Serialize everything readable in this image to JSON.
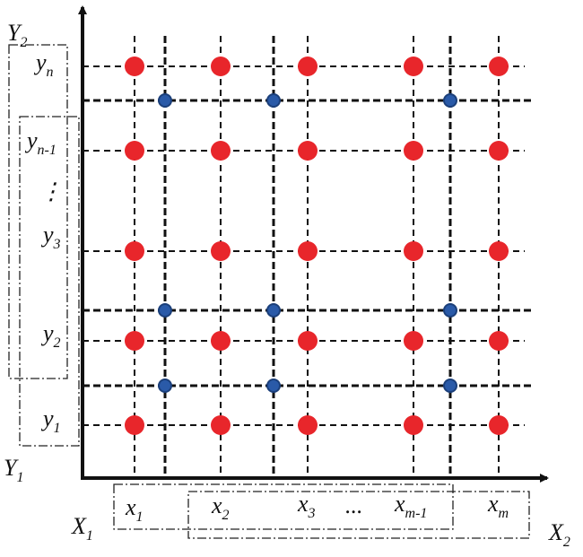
{
  "axes": {
    "y_top": {
      "main": "Y",
      "sub": "2"
    },
    "y_bottom": {
      "main": "Y",
      "sub": "1"
    },
    "x_left": {
      "main": "X",
      "sub": "1"
    },
    "x_right": {
      "main": "X",
      "sub": "2"
    }
  },
  "y_labels": [
    {
      "main": "y",
      "sub": "n"
    },
    {
      "main": "y",
      "sub": "n-1"
    },
    {
      "main": "y",
      "sub": "3"
    },
    {
      "main": "y",
      "sub": "2"
    },
    {
      "main": "y",
      "sub": "1"
    }
  ],
  "y_ellipsis": "⋮",
  "x_labels": [
    {
      "main": "x",
      "sub": "1"
    },
    {
      "main": "x",
      "sub": "2"
    },
    {
      "main": "x",
      "sub": "3"
    },
    {
      "main": "x",
      "sub": "m-1"
    },
    {
      "main": "x",
      "sub": "m"
    }
  ],
  "x_ellipsis": "..."
}
